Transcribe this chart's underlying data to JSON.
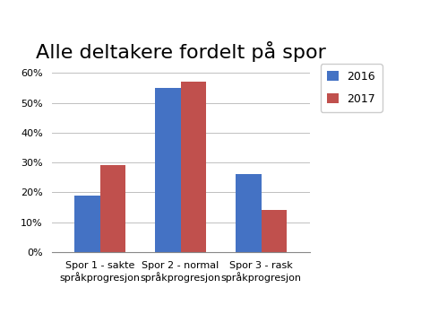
{
  "title": "Alle deltakere fordelt på spor",
  "categories": [
    "Spor 1 - sakte\nspråkprogresjon",
    "Spor 2 - normal\nspråkprogresjon",
    "Spor 3 - rask\nspråkprogresjon"
  ],
  "series_2016": [
    0.19,
    0.55,
    0.26
  ],
  "series_2017": [
    0.29,
    0.57,
    0.14
  ],
  "color_2016": "#4472C4",
  "color_2017": "#C0504D",
  "ylim": [
    0,
    0.65
  ],
  "yticks": [
    0.0,
    0.1,
    0.2,
    0.3,
    0.4,
    0.5,
    0.6
  ],
  "legend_labels": [
    "2016",
    "2017"
  ],
  "bar_width": 0.32,
  "background_color": "#ffffff",
  "title_fontsize": 16,
  "tick_fontsize": 8,
  "legend_fontsize": 9
}
